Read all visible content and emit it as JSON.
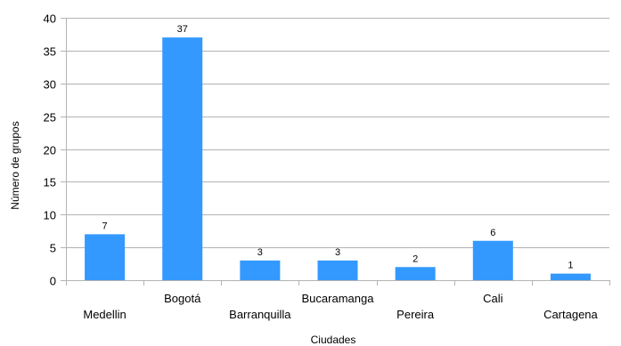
{
  "chart_data": {
    "type": "bar",
    "categories": [
      "Medellin",
      "Bogotá",
      "Barranquilla",
      "Bucaramanga",
      "Pereira",
      "Cali",
      "Cartagena"
    ],
    "values": [
      7,
      37,
      3,
      3,
      2,
      6,
      1
    ],
    "title": "",
    "xlabel": "Ciudades",
    "ylabel": "Número de grupos",
    "ylim": [
      0,
      40
    ],
    "yticks": [
      0,
      5,
      10,
      15,
      20,
      25,
      30,
      35,
      40
    ],
    "grid": "horizontal",
    "legend": "none",
    "data_labels": true,
    "x_tick_label_stagger": true,
    "colors": {
      "bar": "#3399ff",
      "grid": "#b3b3b3",
      "axis": "#b3b3b3",
      "text": "#000000"
    }
  }
}
